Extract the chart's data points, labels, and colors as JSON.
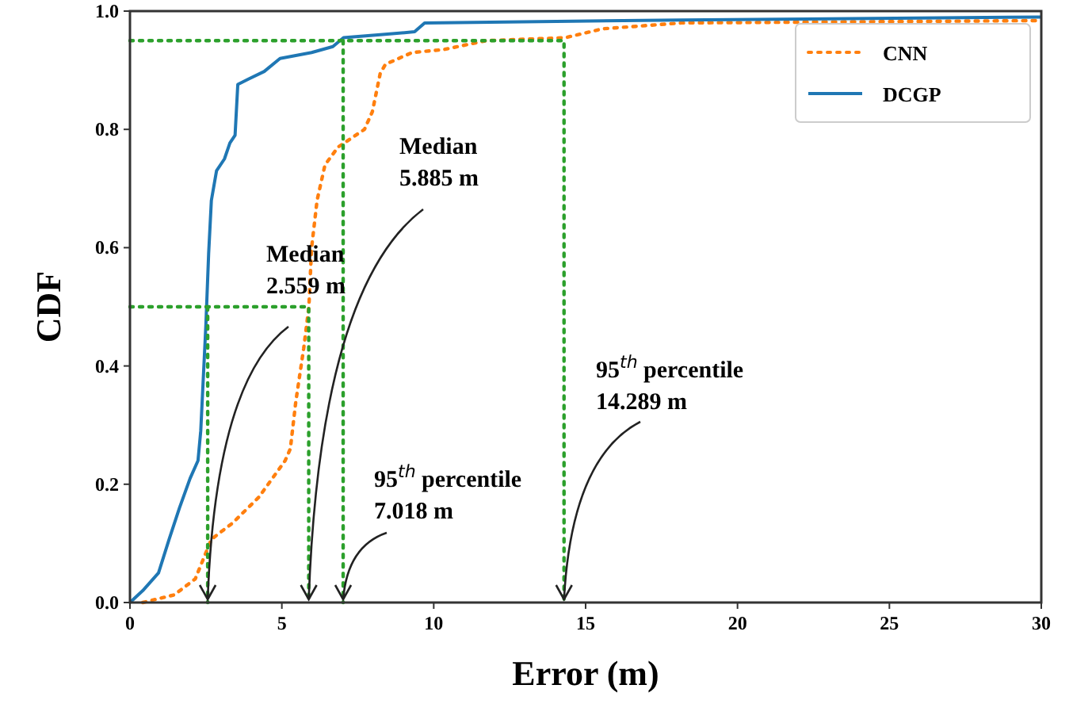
{
  "chart_data": {
    "type": "line",
    "xlabel": "Error (m)",
    "ylabel": "CDF",
    "xlim": [
      0,
      30
    ],
    "xticks": [
      0,
      5,
      10,
      15,
      20,
      25,
      30
    ],
    "ylim": [
      0,
      1
    ],
    "yticks": [
      {
        "value": 0,
        "label": "0.0"
      },
      {
        "value": 0.2,
        "label": "0.2"
      },
      {
        "value": 0.4,
        "label": "0.4"
      },
      {
        "value": 0.6,
        "label": "0.6"
      },
      {
        "value": 0.8,
        "label": "0.8"
      },
      {
        "value": 1,
        "label": "1.0"
      }
    ],
    "grid": false,
    "legend": "top right",
    "series": [
      {
        "name": "CNN",
        "color": "#ff7f0e",
        "line_style": "dotted",
        "x": [
          0.42,
          1.46,
          2.15,
          2.68,
          3.37,
          4.24,
          5.11,
          5.28,
          5.46,
          5.72,
          5.89,
          5.98,
          6.16,
          6.42,
          6.85,
          7.72,
          7.98,
          8.24,
          8.41,
          9.29,
          10.33,
          11.72,
          14.33,
          15.55,
          18.15,
          30
        ],
        "values": [
          0,
          0.013,
          0.04,
          0.107,
          0.134,
          0.178,
          0.24,
          0.26,
          0.34,
          0.43,
          0.5,
          0.6,
          0.68,
          0.74,
          0.77,
          0.8,
          0.83,
          0.895,
          0.91,
          0.93,
          0.935,
          0.95,
          0.955,
          0.97,
          0.98,
          0.984
        ]
      },
      {
        "name": "DCGP",
        "color": "#1f77b4",
        "line_style": "solid",
        "x": [
          0,
          0.42,
          0.94,
          1.29,
          1.63,
          1.98,
          2.24,
          2.33,
          2.5,
          2.59,
          2.68,
          2.85,
          3.11,
          3.29,
          3.46,
          3.55,
          3.9,
          4.42,
          4.94,
          5.98,
          6.68,
          7.03,
          8.24,
          9.37,
          9.7,
          18.15,
          30
        ],
        "values": [
          0,
          0.02,
          0.05,
          0.107,
          0.16,
          0.21,
          0.24,
          0.29,
          0.47,
          0.59,
          0.68,
          0.73,
          0.75,
          0.777,
          0.79,
          0.876,
          0.885,
          0.898,
          0.92,
          0.93,
          0.94,
          0.955,
          0.96,
          0.965,
          0.98,
          0.985,
          0.99
        ]
      },
      {
        "color": "#2ca02c",
        "line_style": "dotted",
        "x": [
          0,
          5.885,
          5.885
        ],
        "values": [
          0.5,
          0.5,
          0
        ]
      },
      {
        "color": "#2ca02c",
        "line_style": "dotted",
        "x": [
          2.559,
          2.559
        ],
        "values": [
          0.5,
          0
        ]
      },
      {
        "color": "#2ca02c",
        "line_style": "dotted",
        "x": [
          0,
          14.289,
          14.289
        ],
        "values": [
          0.95,
          0.95,
          0
        ]
      },
      {
        "color": "#2ca02c",
        "line_style": "dotted",
        "x": [
          7.018,
          7.018
        ],
        "values": [
          0.95,
          0
        ]
      }
    ],
    "annotations": [
      {
        "text": "Median\n2.559 m",
        "x": 2.559,
        "y": 0
      },
      {
        "text": "Median\n5.885 m",
        "x": 5.885,
        "y": 0
      },
      {
        "text": "95$^{th}$ percentile\n7.018 m",
        "x": 7.018,
        "y": 0
      },
      {
        "text": "95$^{th}$ percentile\n14.289 m",
        "x": 14.289,
        "y": 0
      }
    ]
  }
}
